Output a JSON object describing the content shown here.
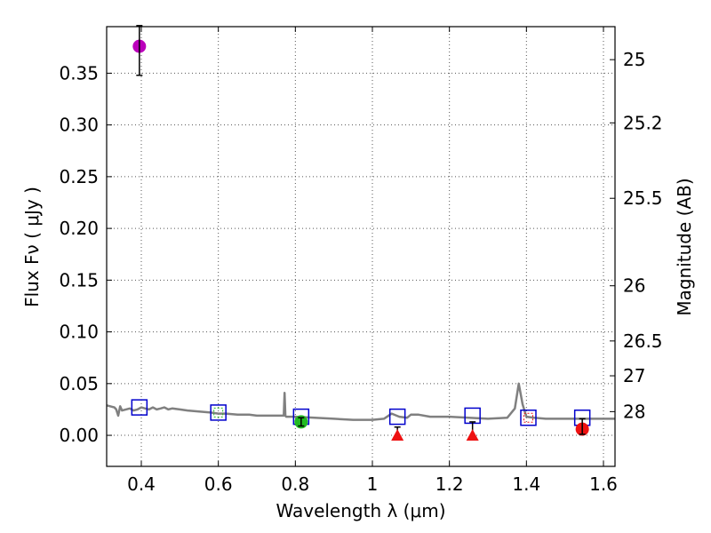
{
  "chart_data": {
    "type": "scatter",
    "xlabel": "Wavelength  λ (μm)",
    "ylabel": "Flux  Fν  ( μJy )",
    "y2label": "Magnitude (AB)",
    "xlim": [
      0.31,
      1.63
    ],
    "ylim": [
      -0.03,
      0.395
    ],
    "x_ticks": [
      {
        "value": 0.4,
        "label": "0.4"
      },
      {
        "value": 0.6,
        "label": "0.6"
      },
      {
        "value": 0.8,
        "label": "0.8"
      },
      {
        "value": 1.0,
        "label": "1"
      },
      {
        "value": 1.2,
        "label": "1.2"
      },
      {
        "value": 1.4,
        "label": "1.4"
      },
      {
        "value": 1.6,
        "label": "1.6"
      }
    ],
    "y_ticks": [
      {
        "value": 0.0,
        "label": "0.00"
      },
      {
        "value": 0.05,
        "label": "0.05"
      },
      {
        "value": 0.1,
        "label": "0.10"
      },
      {
        "value": 0.15,
        "label": "0.15"
      },
      {
        "value": 0.2,
        "label": "0.20"
      },
      {
        "value": 0.25,
        "label": "0.25"
      },
      {
        "value": 0.3,
        "label": "0.30"
      },
      {
        "value": 0.35,
        "label": "0.35"
      }
    ],
    "mag_ticks": [
      {
        "mag": 25,
        "label": "25"
      },
      {
        "mag": 25.2,
        "label": "25.2"
      },
      {
        "mag": 25.5,
        "label": "25.5"
      },
      {
        "mag": 26,
        "label": "26"
      },
      {
        "mag": 26.5,
        "label": "26.5"
      },
      {
        "mag": 27,
        "label": "27"
      },
      {
        "mag": 28,
        "label": "28"
      }
    ],
    "template_spectrum": {
      "color": "#808080",
      "x": [
        0.31,
        0.32,
        0.33,
        0.335,
        0.34,
        0.345,
        0.35,
        0.36,
        0.37,
        0.38,
        0.39,
        0.4,
        0.41,
        0.42,
        0.43,
        0.44,
        0.45,
        0.46,
        0.47,
        0.48,
        0.5,
        0.52,
        0.55,
        0.58,
        0.6,
        0.62,
        0.65,
        0.68,
        0.7,
        0.72,
        0.75,
        0.77,
        0.772,
        0.774,
        0.776,
        0.78,
        0.8,
        0.85,
        0.9,
        0.95,
        1.0,
        1.03,
        1.05,
        1.07,
        1.09,
        1.1,
        1.12,
        1.15,
        1.2,
        1.25,
        1.3,
        1.35,
        1.37,
        1.38,
        1.39,
        1.4,
        1.42,
        1.45,
        1.5,
        1.55,
        1.6,
        1.63
      ],
      "y": [
        0.029,
        0.028,
        0.027,
        0.025,
        0.019,
        0.028,
        0.024,
        0.025,
        0.026,
        0.024,
        0.025,
        0.027,
        0.026,
        0.025,
        0.027,
        0.025,
        0.026,
        0.027,
        0.025,
        0.026,
        0.025,
        0.024,
        0.023,
        0.022,
        0.021,
        0.021,
        0.02,
        0.02,
        0.019,
        0.019,
        0.019,
        0.019,
        0.041,
        0.019,
        0.018,
        0.018,
        0.018,
        0.017,
        0.016,
        0.015,
        0.015,
        0.016,
        0.021,
        0.018,
        0.017,
        0.02,
        0.02,
        0.018,
        0.018,
        0.017,
        0.016,
        0.017,
        0.026,
        0.05,
        0.03,
        0.018,
        0.017,
        0.016,
        0.016,
        0.016,
        0.016,
        0.016
      ]
    },
    "model_fluxes": {
      "marker": "open-square",
      "color": "#0000cc",
      "points": [
        {
          "x": 0.395,
          "y": 0.027
        },
        {
          "x": 0.6,
          "y": 0.022
        },
        {
          "x": 0.815,
          "y": 0.018
        },
        {
          "x": 1.065,
          "y": 0.018
        },
        {
          "x": 1.26,
          "y": 0.019
        },
        {
          "x": 1.405,
          "y": 0.017
        },
        {
          "x": 1.545,
          "y": 0.017
        }
      ]
    },
    "observed_fluxes": [
      {
        "x": 0.395,
        "y": 0.376,
        "yerr_low": 0.028,
        "yerr_high": 0.02,
        "marker": "circle",
        "color": "#bb00bb"
      },
      {
        "x": 0.815,
        "y": 0.013,
        "yerr_low": 0.004,
        "yerr_high": 0.004,
        "marker": "circle",
        "color": "#22bb22"
      },
      {
        "x": 1.545,
        "y": 0.006,
        "yerr_low": 0.005,
        "yerr_high": 0.01,
        "marker": "circle",
        "color": "#ee1111"
      }
    ],
    "upper_limits": [
      {
        "x": 1.065,
        "y": 0.0,
        "err_high": 0.008,
        "marker": "triangle",
        "color": "#ee1111"
      },
      {
        "x": 1.26,
        "y": 0.0,
        "err_high": 0.013,
        "marker": "triangle",
        "color": "#ee1111"
      }
    ],
    "filter_overlays": [
      {
        "x": 0.6,
        "y": 0.022,
        "color": "#22bb22"
      },
      {
        "x": 1.405,
        "y": 0.017,
        "color": "#ee1111"
      }
    ]
  }
}
